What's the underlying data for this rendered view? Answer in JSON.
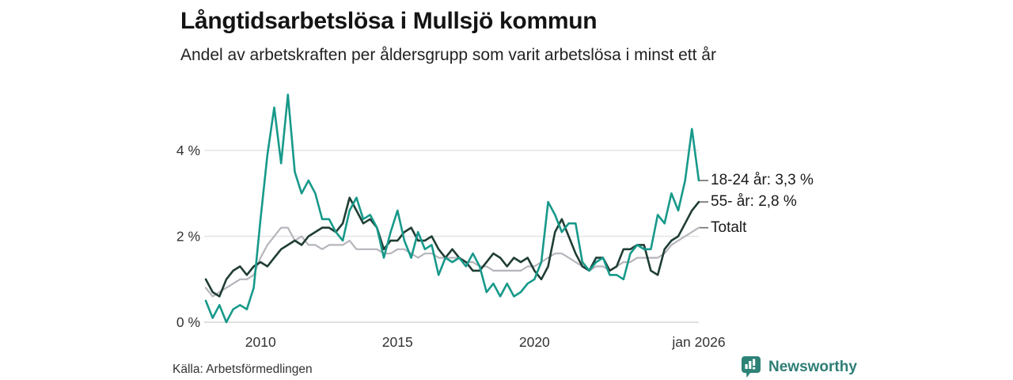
{
  "header": {
    "title": "Långtidsarbetslösa i Mullsjö kommun",
    "subtitle": "Andel av arbetskraften per åldersgrupp som varit arbetslösa i minst ett år"
  },
  "footer": {
    "source": "Källa: Arbetsförmedlingen",
    "brand": "Newsworthy"
  },
  "colors": {
    "series_teal": "#17998a",
    "series_dark": "#1f3d35",
    "series_gray": "#b5b5bc",
    "grid": "#e4e4e4",
    "baseline": "#d6d6d6",
    "axis_text": "#333333",
    "legend_dash": "#6b6b6b",
    "brand_teal": "#2e7e76",
    "title_text": "#141414"
  },
  "chart_data": {
    "type": "line",
    "title": "Långtidsarbetslösa i Mullsjö kommun",
    "subtitle": "Andel av arbetskraften per åldersgrupp som varit arbetslösa i minst ett år",
    "unit": "% av arbetskraften",
    "grid": "horizontal",
    "legend_position": "right-end-labels",
    "xlim": [
      2008.0,
      2026.0
    ],
    "ylim": [
      0,
      5.5
    ],
    "x_start": 2008.0,
    "x_step": 0.25,
    "x_ticks": [
      {
        "v": 2010,
        "label": "2010"
      },
      {
        "v": 2015,
        "label": "2015"
      },
      {
        "v": 2020,
        "label": "2020"
      },
      {
        "v": 2026,
        "label": "jan 2026"
      }
    ],
    "y_ticks": [
      {
        "v": 0,
        "label": "0 %"
      },
      {
        "v": 2,
        "label": "2 %"
      },
      {
        "v": 4,
        "label": "4 %"
      }
    ],
    "series": [
      {
        "name": "18-24 år",
        "end_label": "18-24 år: 3,3 %",
        "latest_value": 3.3,
        "color_key": "series_teal",
        "width": 2.6,
        "values": [
          0.5,
          0.1,
          0.4,
          0.0,
          0.3,
          0.4,
          0.3,
          0.8,
          2.4,
          3.9,
          5.0,
          3.7,
          5.3,
          3.5,
          3.0,
          3.3,
          3.0,
          2.4,
          2.4,
          2.1,
          1.9,
          2.6,
          2.9,
          2.4,
          2.5,
          2.2,
          1.5,
          2.1,
          2.6,
          1.9,
          1.5,
          2.1,
          1.7,
          1.8,
          1.1,
          1.5,
          1.4,
          1.5,
          1.3,
          1.6,
          1.3,
          0.7,
          0.9,
          0.6,
          0.9,
          0.6,
          0.7,
          0.9,
          1.0,
          1.4,
          2.8,
          2.5,
          2.1,
          2.3,
          2.3,
          1.4,
          1.2,
          1.4,
          1.5,
          1.1,
          1.1,
          1.0,
          1.6,
          1.8,
          1.7,
          1.7,
          2.5,
          2.3,
          3.0,
          2.6,
          3.3,
          4.5,
          3.3
        ]
      },
      {
        "name": "55- år",
        "end_label": "55- år: 2,8 %",
        "latest_value": 2.8,
        "color_key": "series_dark",
        "width": 2.6,
        "values": [
          1.0,
          0.7,
          0.6,
          1.0,
          1.2,
          1.3,
          1.1,
          1.3,
          1.4,
          1.3,
          1.5,
          1.7,
          1.8,
          1.9,
          1.8,
          2.0,
          2.1,
          2.2,
          2.2,
          2.1,
          2.3,
          2.9,
          2.6,
          2.3,
          2.4,
          2.2,
          1.7,
          1.9,
          1.9,
          2.1,
          2.2,
          1.9,
          1.9,
          2.0,
          1.7,
          1.5,
          1.7,
          1.5,
          1.4,
          1.2,
          1.2,
          1.4,
          1.6,
          1.5,
          1.3,
          1.5,
          1.4,
          1.5,
          1.2,
          1.0,
          1.3,
          2.1,
          2.4,
          2.0,
          1.6,
          1.3,
          1.2,
          1.5,
          1.5,
          1.2,
          1.3,
          1.7,
          1.7,
          1.8,
          1.8,
          1.2,
          1.1,
          1.7,
          1.9,
          2.0,
          2.3,
          2.6,
          2.8
        ]
      },
      {
        "name": "Totalt",
        "end_label": "Totalt",
        "latest_value": 2.2,
        "color_key": "series_gray",
        "width": 2.2,
        "values": [
          0.8,
          0.6,
          0.7,
          0.8,
          0.9,
          1.0,
          1.0,
          1.1,
          1.5,
          1.8,
          2.0,
          2.2,
          2.2,
          1.9,
          2.0,
          1.8,
          1.8,
          1.7,
          1.8,
          1.8,
          1.8,
          1.9,
          1.7,
          1.7,
          1.7,
          1.7,
          1.6,
          1.6,
          1.7,
          1.7,
          1.6,
          1.5,
          1.6,
          1.6,
          1.5,
          1.5,
          1.5,
          1.5,
          1.4,
          1.4,
          1.3,
          1.3,
          1.2,
          1.2,
          1.2,
          1.2,
          1.2,
          1.3,
          1.3,
          1.4,
          1.5,
          1.6,
          1.6,
          1.5,
          1.4,
          1.3,
          1.2,
          1.3,
          1.3,
          1.2,
          1.3,
          1.4,
          1.4,
          1.5,
          1.5,
          1.5,
          1.5,
          1.6,
          1.8,
          1.9,
          2.0,
          2.1,
          2.2
        ]
      }
    ]
  }
}
